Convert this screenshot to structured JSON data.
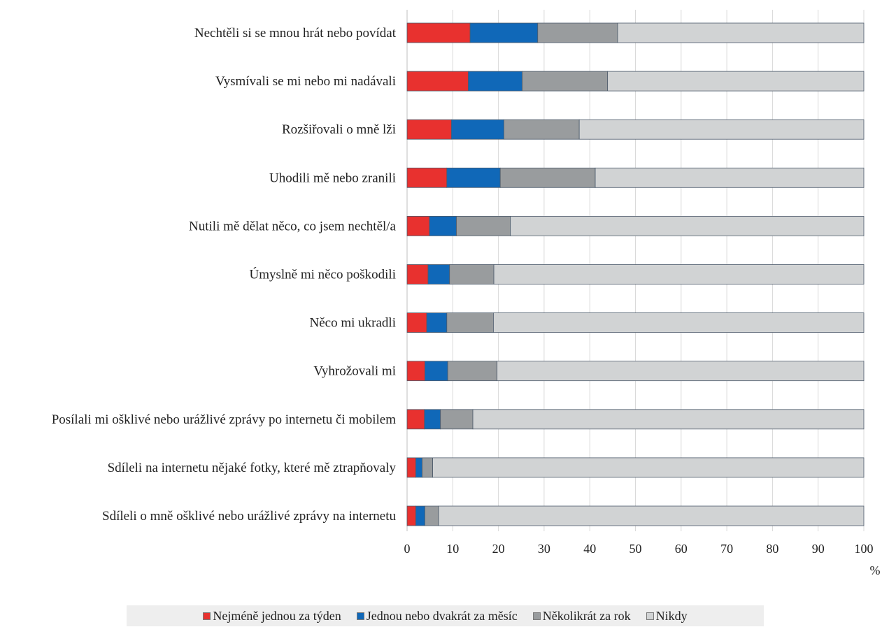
{
  "chart_data": {
    "type": "bar",
    "orientation": "horizontal",
    "stacked": true,
    "categories": [
      "Nechtěli si se mnou hrát nebo povídat",
      "Vysmívali se mi nebo mi nadávali",
      "Rozšiřovali o mně lži",
      "Uhodili mě nebo zranili",
      "Nutili mě dělat něco, co jsem nechtěl/a",
      "Úmyslně mi něco poškodili",
      "Něco mi ukradli",
      "Vyhrožovali mi",
      "Posílali mi ošklivé nebo urážlivé zprávy po internetu či mobilem",
      "Sdíleli na internetu nějaké fotky, které mě ztrapňovaly",
      "Sdíleli o mně ošklivé nebo urážlivé zprávy na internetu"
    ],
    "series": [
      {
        "name": "Nejméně jednou za týden",
        "color": "#e8312f",
        "values": [
          13.8,
          13.4,
          9.7,
          8.7,
          4.9,
          4.6,
          4.3,
          3.9,
          3.8,
          1.9,
          1.9
        ]
      },
      {
        "name": "Jednou nebo dvakrát za měsíc",
        "color": "#1068b8",
        "values": [
          14.8,
          11.8,
          11.5,
          11.7,
          5.9,
          4.7,
          4.4,
          5.0,
          3.5,
          1.4,
          2.0
        ]
      },
      {
        "name": "Několikrát za rok",
        "color": "#999c9e",
        "values": [
          17.5,
          18.7,
          16.5,
          20.8,
          11.8,
          9.7,
          10.2,
          10.8,
          7.1,
          2.3,
          3.0
        ]
      },
      {
        "name": "Nikdy",
        "color": "#d1d3d4",
        "values": [
          53.9,
          56.1,
          62.3,
          58.8,
          77.4,
          81.0,
          81.1,
          80.3,
          85.6,
          94.4,
          93.1
        ]
      }
    ],
    "xlim": [
      0,
      100
    ],
    "xticks": [
      "0",
      "10",
      "20",
      "30",
      "40",
      "50",
      "60",
      "70",
      "80",
      "90",
      "100"
    ],
    "xunit": "%",
    "grid": true,
    "legend_position": "bottom"
  }
}
